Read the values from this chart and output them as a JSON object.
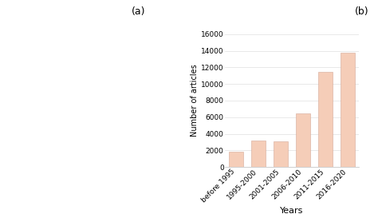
{
  "categories": [
    "before 1995",
    "1995-2000",
    "2001-2005",
    "2006-2010",
    "2011-2015",
    "2016-2020"
  ],
  "values": [
    1800,
    3200,
    3100,
    6500,
    11500,
    13800
  ],
  "bar_color": "#f5cdb8",
  "bar_edgecolor": "#d4a898",
  "xlabel": "Years",
  "ylabel": "Number of articles",
  "ylim": [
    0,
    16000
  ],
  "yticks": [
    0,
    2000,
    4000,
    6000,
    8000,
    10000,
    12000,
    14000,
    16000
  ],
  "label_a": "(a)",
  "label_b": "(b)",
  "background_color": "#ffffff",
  "grid_color": "#e0e0e0",
  "xlabel_fontsize": 8,
  "ylabel_fontsize": 7,
  "tick_fontsize": 6.5,
  "label_fontsize": 9
}
